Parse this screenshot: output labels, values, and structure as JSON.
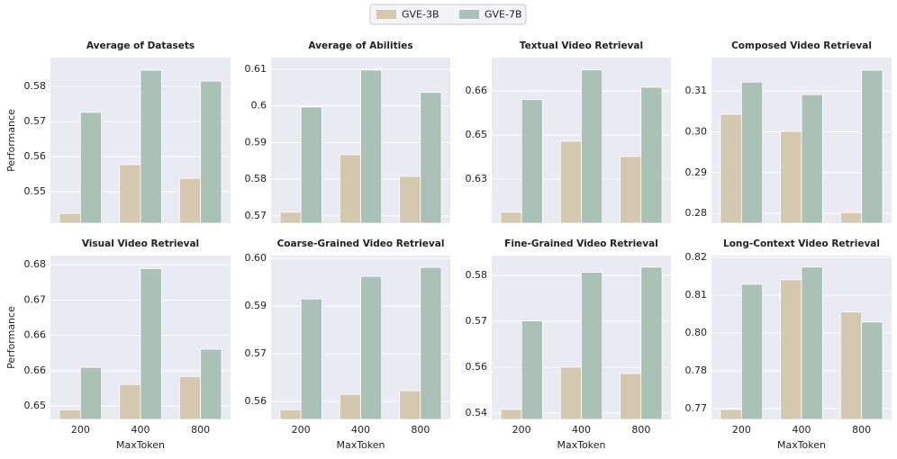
{
  "chart_data": [
    {
      "type": "bar",
      "title": "Average of Datasets",
      "ylabel": "Performance",
      "series": [
        {
          "name": "GVE-3B",
          "color": "#d4c8b1",
          "values": [
            0.5438,
            0.5577,
            0.5538
          ]
        },
        {
          "name": "GVE-7B",
          "color": "#a9c1b6",
          "values": [
            0.5726,
            0.5846,
            0.5815
          ]
        }
      ],
      "ylim": [
        0.541,
        0.5882
      ],
      "yticks": [
        0.55,
        0.56,
        0.57,
        0.58
      ],
      "grid": true
    },
    {
      "type": "bar",
      "title": "Average of Abilities",
      "series": [
        {
          "name": "GVE-3B",
          "color": "#d4c8b1",
          "values": [
            0.571,
            0.5867,
            0.5808
          ]
        },
        {
          "name": "GVE-7B",
          "color": "#a9c1b6",
          "values": [
            0.5997,
            0.6098,
            0.6037
          ]
        }
      ],
      "ylim": [
        0.568,
        0.6132
      ],
      "yticks": [
        0.57,
        0.58,
        0.59,
        0.6,
        0.61
      ],
      "grid": true
    },
    {
      "type": "bar",
      "title": "Textual Video Retrieval",
      "series": [
        {
          "name": "GVE-3B",
          "color": "#d4c8b1",
          "values": [
            0.6246,
            0.6447,
            0.6404
          ]
        },
        {
          "name": "GVE-7B",
          "color": "#a9c1b6",
          "values": [
            0.6565,
            0.6649,
            0.66
          ]
        }
      ],
      "ylim": [
        0.6215,
        0.6684
      ],
      "yticks": [
        {
          "value": 0.634,
          "label": "0.63"
        },
        {
          "value": 0.6465,
          "label": "0.65"
        },
        {
          "value": 0.659,
          "label": "0.66"
        }
      ],
      "grid": true
    },
    {
      "type": "bar",
      "title": "Composed Video Retrieval",
      "series": [
        {
          "name": "GVE-3B",
          "color": "#d4c8b1",
          "values": [
            0.3043,
            0.3001,
            0.2802
          ]
        },
        {
          "name": "GVE-7B",
          "color": "#a9c1b6",
          "values": [
            0.3122,
            0.3091,
            0.3151
          ]
        }
      ],
      "ylim": [
        0.2776,
        0.3182
      ],
      "yticks": [
        {
          "value": 0.28,
          "label": "0.28"
        },
        {
          "value": 0.29,
          "label": "0.29"
        },
        {
          "value": 0.3,
          "label": "0.30"
        },
        {
          "value": 0.31,
          "label": "0.31"
        }
      ],
      "grid": true
    },
    {
      "type": "bar",
      "title": "Visual Video Retrieval",
      "ylabel": "Performance",
      "xlabel": "MaxToken",
      "categories": [
        "200",
        "400",
        "800"
      ],
      "series": [
        {
          "name": "GVE-3B",
          "color": "#d4c8b1",
          "values": [
            0.6492,
            0.6545,
            0.6562
          ]
        },
        {
          "name": "GVE-7B",
          "color": "#a9c1b6",
          "values": [
            0.6581,
            0.6788,
            0.6619
          ]
        }
      ],
      "ylim": [
        0.6472,
        0.6815
      ],
      "yticks": [
        0.65,
        {
          "value": 0.6574,
          "label": "0.66"
        },
        {
          "value": 0.6648,
          "label": "0.66"
        },
        {
          "value": 0.6722,
          "label": "0.67"
        },
        {
          "value": 0.6796,
          "label": "0.68"
        }
      ],
      "grid": true
    },
    {
      "type": "bar",
      "title": "Coarse-Grained Video Retrieval",
      "xlabel": "MaxToken",
      "categories": [
        "200",
        "400",
        "800"
      ],
      "series": [
        {
          "name": "GVE-3B",
          "color": "#d4c8b1",
          "values": [
            0.5577,
            0.562,
            0.563
          ]
        },
        {
          "name": "GVE-7B",
          "color": "#a9c1b6",
          "values": [
            0.5886,
            0.5949,
            0.5974
          ]
        }
      ],
      "ylim": [
        0.555,
        0.6007
      ],
      "yticks": [
        0.56,
        {
          "value": 0.5733,
          "label": "0.57"
        },
        {
          "value": 0.5866,
          "label": "0.59"
        },
        {
          "value": 0.5999,
          "label": "0.60"
        }
      ],
      "grid": true
    },
    {
      "type": "bar",
      "title": "Fine-Grained Video Retrieval",
      "xlabel": "MaxToken",
      "categories": [
        "200",
        "400",
        "800"
      ],
      "series": [
        {
          "name": "GVE-3B",
          "color": "#d4c8b1",
          "values": [
            0.5454,
            0.556,
            0.5544
          ]
        },
        {
          "name": "GVE-7B",
          "color": "#a9c1b6",
          "values": [
            0.5676,
            0.5798,
            0.5811
          ]
        }
      ],
      "ylim": [
        0.5429,
        0.584
      ],
      "yticks": [
        {
          "value": 0.5445,
          "label": "0.54"
        },
        {
          "value": 0.556,
          "label": "0.56"
        },
        {
          "value": 0.5675,
          "label": "0.57"
        },
        {
          "value": 0.579,
          "label": "0.58"
        }
      ],
      "grid": true
    },
    {
      "type": "bar",
      "title": "Long-Context Video Retrieval",
      "xlabel": "MaxToken",
      "categories": [
        "200",
        "400",
        "800"
      ],
      "series": [
        {
          "name": "GVE-3B",
          "color": "#d4c8b1",
          "values": [
            0.7702,
            0.8131,
            0.8024
          ]
        },
        {
          "name": "GVE-7B",
          "color": "#a9c1b6",
          "values": [
            0.8116,
            0.8173,
            0.7991
          ]
        }
      ],
      "ylim": [
        0.7669,
        0.8211
      ],
      "yticks": [
        {
          "value": 0.7705,
          "label": "0.77"
        },
        {
          "value": 0.783,
          "label": "0.78"
        },
        {
          "value": 0.7955,
          "label": "0.80"
        },
        {
          "value": 0.808,
          "label": "0.81"
        },
        {
          "value": 0.8205,
          "label": "0.82"
        }
      ],
      "grid": true
    }
  ]
}
